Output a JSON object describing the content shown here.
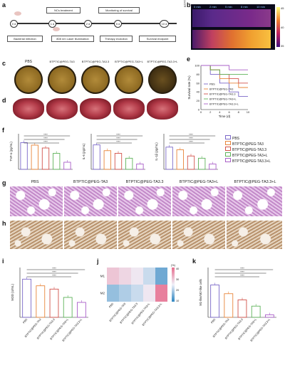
{
  "panels": {
    "a": "a",
    "b": "b",
    "c": "c",
    "d": "d",
    "e": "e",
    "f": "f",
    "g": "g",
    "h": "h",
    "i": "i",
    "j": "j",
    "k": "k"
  },
  "timeline": {
    "nc_treatment": "NCs treatment",
    "monitoring": "Monitoring of survival",
    "days": [
      "0 d",
      "1 d",
      "2 d",
      "5 d",
      "10 d"
    ],
    "bacterial": "Bacterial infection",
    "laser": "808 nm Laser illumination",
    "therapy": "Therapy evolution",
    "endpoint": "Survival endpoint"
  },
  "thermal": {
    "times": [
      "0 min",
      "2 min",
      "5 min",
      "8 min",
      "10 min"
    ],
    "rows": [
      "BTPTIC@PEG-TA3",
      "BTPTIC@PEG-TA3+L"
    ],
    "scale": [
      "45",
      "40",
      "35"
    ]
  },
  "groups": [
    "PBS",
    "BTPTIC@PEG-TA3",
    "BTPTIC@PEG-TA3.3",
    "BTPTIC@PEG-TA3+L",
    "BTPTIC@PEG-TA3.3+L"
  ],
  "colors": {
    "pbs": "#7b68c8",
    "ta3": "#e8853a",
    "ta33": "#d2524a",
    "ta3L": "#5fb35a",
    "ta33L": "#a95fc8",
    "heat_low": "#2e86c1",
    "heat_high": "#e76f8f"
  },
  "chart_data": [
    {
      "id": "e",
      "type": "line",
      "xlabel": "Time (d)",
      "ylabel": "Survival rate (%)",
      "x": [
        0,
        2,
        4,
        6,
        8,
        10
      ],
      "series": [
        {
          "name": "PBS",
          "values": [
            100,
            80,
            60,
            40,
            30,
            30
          ]
        },
        {
          "name": "BTPTIC@PEG-TA3",
          "values": [
            100,
            90,
            70,
            60,
            50,
            50
          ]
        },
        {
          "name": "BTPTIC@PEG-TA3.3",
          "values": [
            100,
            90,
            80,
            70,
            60,
            60
          ]
        },
        {
          "name": "BTPTIC@PEG-TA3+L",
          "values": [
            100,
            90,
            80,
            80,
            80,
            80
          ]
        },
        {
          "name": "BTPTIC@PEG-TA3.3+L",
          "values": [
            100,
            100,
            100,
            90,
            90,
            90
          ]
        }
      ],
      "xticks": [
        "0",
        "2",
        "4",
        "6",
        "8",
        "10"
      ],
      "yticks": [
        "0",
        "20",
        "40",
        "60",
        "80",
        "100"
      ],
      "ylim": [
        0,
        100
      ]
    },
    {
      "id": "f1",
      "type": "bar",
      "ylabel": "TNF-α (pg/mL)",
      "categories": [
        "PBS",
        "TA3",
        "TA3.3",
        "TA3+L",
        "TA3.3+L"
      ],
      "values": [
        75,
        68,
        60,
        45,
        20
      ],
      "ylim": [
        0,
        100
      ]
    },
    {
      "id": "f2",
      "type": "bar",
      "ylabel": "IL-6 (pg/mL)",
      "categories": [
        "PBS",
        "TA3",
        "TA3.3",
        "TA3+L",
        "TA3.3+L"
      ],
      "values": [
        55,
        42,
        36,
        25,
        12
      ],
      "ylim": [
        0,
        80
      ]
    },
    {
      "id": "f3",
      "type": "bar",
      "ylabel": "IL-1β (pg/mL)",
      "categories": [
        "PBS",
        "TA3",
        "TA3.3",
        "TA3+L",
        "TA3.3+L"
      ],
      "values": [
        50,
        44,
        30,
        25,
        12
      ],
      "ylim": [
        0,
        80
      ]
    },
    {
      "id": "i",
      "type": "bar",
      "ylabel": "MOD (U/mL)",
      "categories": [
        "PBS",
        "BTPTIC@PEG-TA3",
        "BTPTIC@PEG-TA3.3",
        "BTPTIC@PEG-TA3+L",
        "BTPTIC@PEG-TA3.3+L"
      ],
      "values": [
        115,
        95,
        85,
        60,
        45
      ],
      "ylim": [
        0,
        150
      ]
    },
    {
      "id": "j",
      "type": "heatmap",
      "rows": [
        "M1",
        "M2"
      ],
      "columns": [
        "PBS",
        "BTPTIC@PEG-TA3",
        "BTPTIC@PEG-TA3.3",
        "BTPTIC@PEG-TA3+L",
        "BTPTIC@PEG-TA3.3+L"
      ],
      "values": [
        [
          30,
          28,
          26,
          22,
          15
        ],
        [
          18,
          20,
          22,
          26,
          38
        ]
      ],
      "scale": [
        "40",
        "30",
        "20",
        "10"
      ],
      "unit": "(%)"
    },
    {
      "id": "k",
      "type": "bar",
      "ylabel": "M1-like/M2-like cells",
      "categories": [
        "PBS",
        "BTPTIC@PEG-TA3",
        "BTPTIC@PEG-TA3.3",
        "BTPTIC@PEG-TA3+L",
        "BTPTIC@PEG-TA3.3+L"
      ],
      "values": [
        2.6,
        1.9,
        1.4,
        0.9,
        0.2
      ],
      "ylim": [
        0,
        4
      ]
    }
  ],
  "sig": "****"
}
